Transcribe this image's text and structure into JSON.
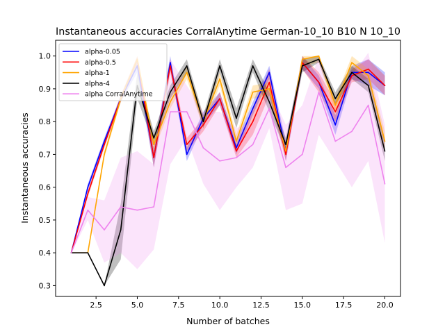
{
  "chart_data": {
    "type": "line",
    "title": "Instantaneous accuracies CorralAnytime German-10_10 B10 N 10_10",
    "xlabel": "Number of batches",
    "ylabel": "Instantaneous accuracies",
    "xlim": [
      0.05,
      20.95
    ],
    "ylim": [
      0.267,
      1.048
    ],
    "xticks": [
      2.5,
      5.0,
      7.5,
      10.0,
      12.5,
      15.0,
      17.5,
      20.0
    ],
    "xtick_labels": [
      "2.5",
      "5.0",
      "7.5",
      "10.0",
      "12.5",
      "15.0",
      "17.5",
      "20.0"
    ],
    "yticks": [
      0.3,
      0.4,
      0.5,
      0.6,
      0.7,
      0.8,
      0.9,
      1.0
    ],
    "ytick_labels": [
      "0.3",
      "0.4",
      "0.5",
      "0.6",
      "0.7",
      "0.8",
      "0.9",
      "1.0"
    ],
    "grid": false,
    "legend_position": "top-left",
    "x": [
      1,
      2,
      3,
      4,
      5,
      6,
      7,
      8,
      9,
      10,
      11,
      12,
      13,
      14,
      15,
      16,
      17,
      18,
      19,
      20
    ],
    "series": [
      {
        "name": "alpha-0.05",
        "color": "#0000ff",
        "values": [
          0.4,
          0.6,
          0.74,
          0.87,
          0.97,
          0.69,
          0.98,
          0.7,
          0.81,
          0.87,
          0.72,
          0.84,
          0.95,
          0.71,
          0.98,
          0.92,
          0.79,
          0.95,
          0.95,
          0.91
        ],
        "band_lower": [
          0.4,
          0.59,
          0.73,
          0.86,
          0.95,
          0.66,
          0.96,
          0.68,
          0.79,
          0.85,
          0.7,
          0.82,
          0.93,
          0.68,
          0.96,
          0.9,
          0.76,
          0.93,
          0.91,
          0.88
        ],
        "band_upper": [
          0.4,
          0.61,
          0.75,
          0.88,
          0.99,
          0.72,
          1.0,
          0.72,
          0.83,
          0.89,
          0.74,
          0.86,
          0.97,
          0.74,
          1.0,
          0.94,
          0.82,
          0.97,
          0.99,
          0.95
        ]
      },
      {
        "name": "alpha-0.5",
        "color": "#ff0000",
        "values": [
          0.4,
          0.58,
          0.73,
          0.87,
          0.99,
          0.69,
          0.97,
          0.73,
          0.79,
          0.87,
          0.71,
          0.8,
          0.92,
          0.7,
          0.98,
          0.92,
          0.83,
          0.94,
          0.96,
          0.91
        ],
        "band_lower": [
          0.4,
          0.57,
          0.72,
          0.86,
          0.97,
          0.66,
          0.95,
          0.71,
          0.77,
          0.85,
          0.69,
          0.76,
          0.88,
          0.68,
          0.96,
          0.89,
          0.8,
          0.92,
          0.93,
          0.88
        ],
        "band_upper": [
          0.4,
          0.59,
          0.74,
          0.88,
          1.0,
          0.72,
          0.99,
          0.75,
          0.81,
          0.89,
          0.73,
          0.84,
          0.96,
          0.72,
          1.0,
          0.95,
          0.86,
          0.96,
          0.99,
          0.94
        ]
      },
      {
        "name": "alpha-1",
        "color": "#ffa500",
        "values": [
          0.4,
          0.4,
          0.7,
          0.87,
          0.99,
          0.73,
          0.86,
          0.95,
          0.8,
          0.93,
          0.74,
          0.89,
          0.9,
          0.71,
          0.99,
          1.0,
          0.85,
          0.98,
          0.94,
          0.74
        ],
        "band_lower": [
          0.4,
          0.4,
          0.69,
          0.86,
          0.97,
          0.71,
          0.84,
          0.93,
          0.78,
          0.91,
          0.72,
          0.87,
          0.88,
          0.69,
          0.97,
          0.98,
          0.83,
          0.96,
          0.92,
          0.71
        ],
        "band_upper": [
          0.4,
          0.4,
          0.71,
          0.88,
          1.0,
          0.75,
          0.88,
          0.97,
          0.82,
          0.95,
          0.76,
          0.91,
          0.92,
          0.73,
          1.0,
          1.0,
          0.87,
          1.0,
          0.96,
          0.77
        ]
      },
      {
        "name": "alpha-4",
        "color": "#000000",
        "values": [
          0.4,
          0.4,
          0.3,
          0.47,
          0.91,
          0.75,
          0.89,
          0.97,
          0.8,
          0.97,
          0.81,
          0.97,
          0.86,
          0.73,
          0.97,
          0.99,
          0.87,
          0.95,
          0.91,
          0.71
        ],
        "band_lower": [
          0.4,
          0.4,
          0.3,
          0.38,
          0.87,
          0.73,
          0.87,
          0.95,
          0.78,
          0.95,
          0.78,
          0.95,
          0.83,
          0.71,
          0.95,
          0.98,
          0.85,
          0.93,
          0.89,
          0.68
        ],
        "band_upper": [
          0.4,
          0.4,
          0.3,
          0.55,
          0.95,
          0.77,
          0.91,
          0.99,
          0.82,
          0.99,
          0.84,
          0.99,
          0.89,
          0.75,
          0.99,
          1.0,
          0.89,
          0.97,
          0.93,
          0.74
        ]
      },
      {
        "name": "alpha CorralAnytime",
        "color": "#ee82ee",
        "values": [
          0.4,
          0.53,
          0.47,
          0.54,
          0.53,
          0.54,
          0.83,
          0.83,
          0.72,
          0.68,
          0.69,
          0.73,
          0.84,
          0.66,
          0.7,
          0.89,
          0.74,
          0.77,
          0.85,
          0.61
        ],
        "band_lower": [
          0.4,
          0.5,
          0.37,
          0.4,
          0.35,
          0.41,
          0.67,
          0.75,
          0.61,
          0.53,
          0.6,
          0.66,
          0.78,
          0.53,
          0.55,
          0.76,
          0.68,
          0.6,
          0.68,
          0.43
        ],
        "band_upper": [
          0.4,
          0.57,
          0.56,
          0.69,
          0.71,
          0.67,
          0.99,
          0.91,
          0.83,
          0.83,
          0.78,
          0.8,
          0.9,
          0.79,
          0.85,
          1.0,
          0.8,
          0.94,
          1.01,
          0.79
        ]
      }
    ]
  }
}
